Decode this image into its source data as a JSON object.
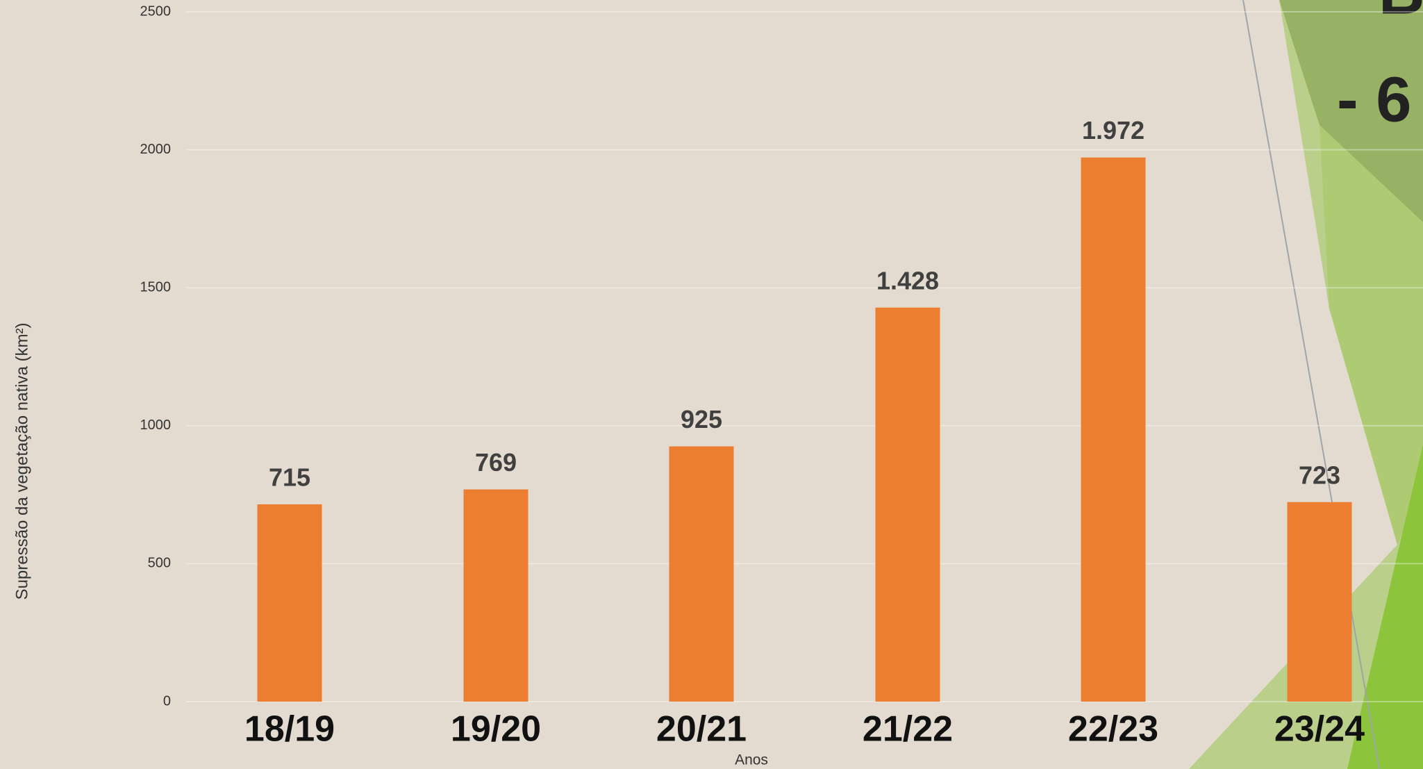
{
  "chart_data": {
    "type": "bar",
    "categories": [
      "18/19",
      "19/20",
      "20/21",
      "21/22",
      "22/23",
      "23/24"
    ],
    "values": [
      715,
      769,
      925,
      1428,
      1972,
      723
    ],
    "value_labels": [
      "715",
      "769",
      "925",
      "1.428",
      "1.972",
      "723"
    ],
    "color": "#ed7d31",
    "ylim": [
      0,
      2500
    ],
    "yticks": [
      0,
      500,
      1000,
      1500,
      2000,
      2500
    ],
    "grid": true,
    "y_label": "Supressão da vegetação nativa (km²)",
    "x_label": "Anos"
  },
  "slide_text": [
    "B",
    "- 6"
  ]
}
